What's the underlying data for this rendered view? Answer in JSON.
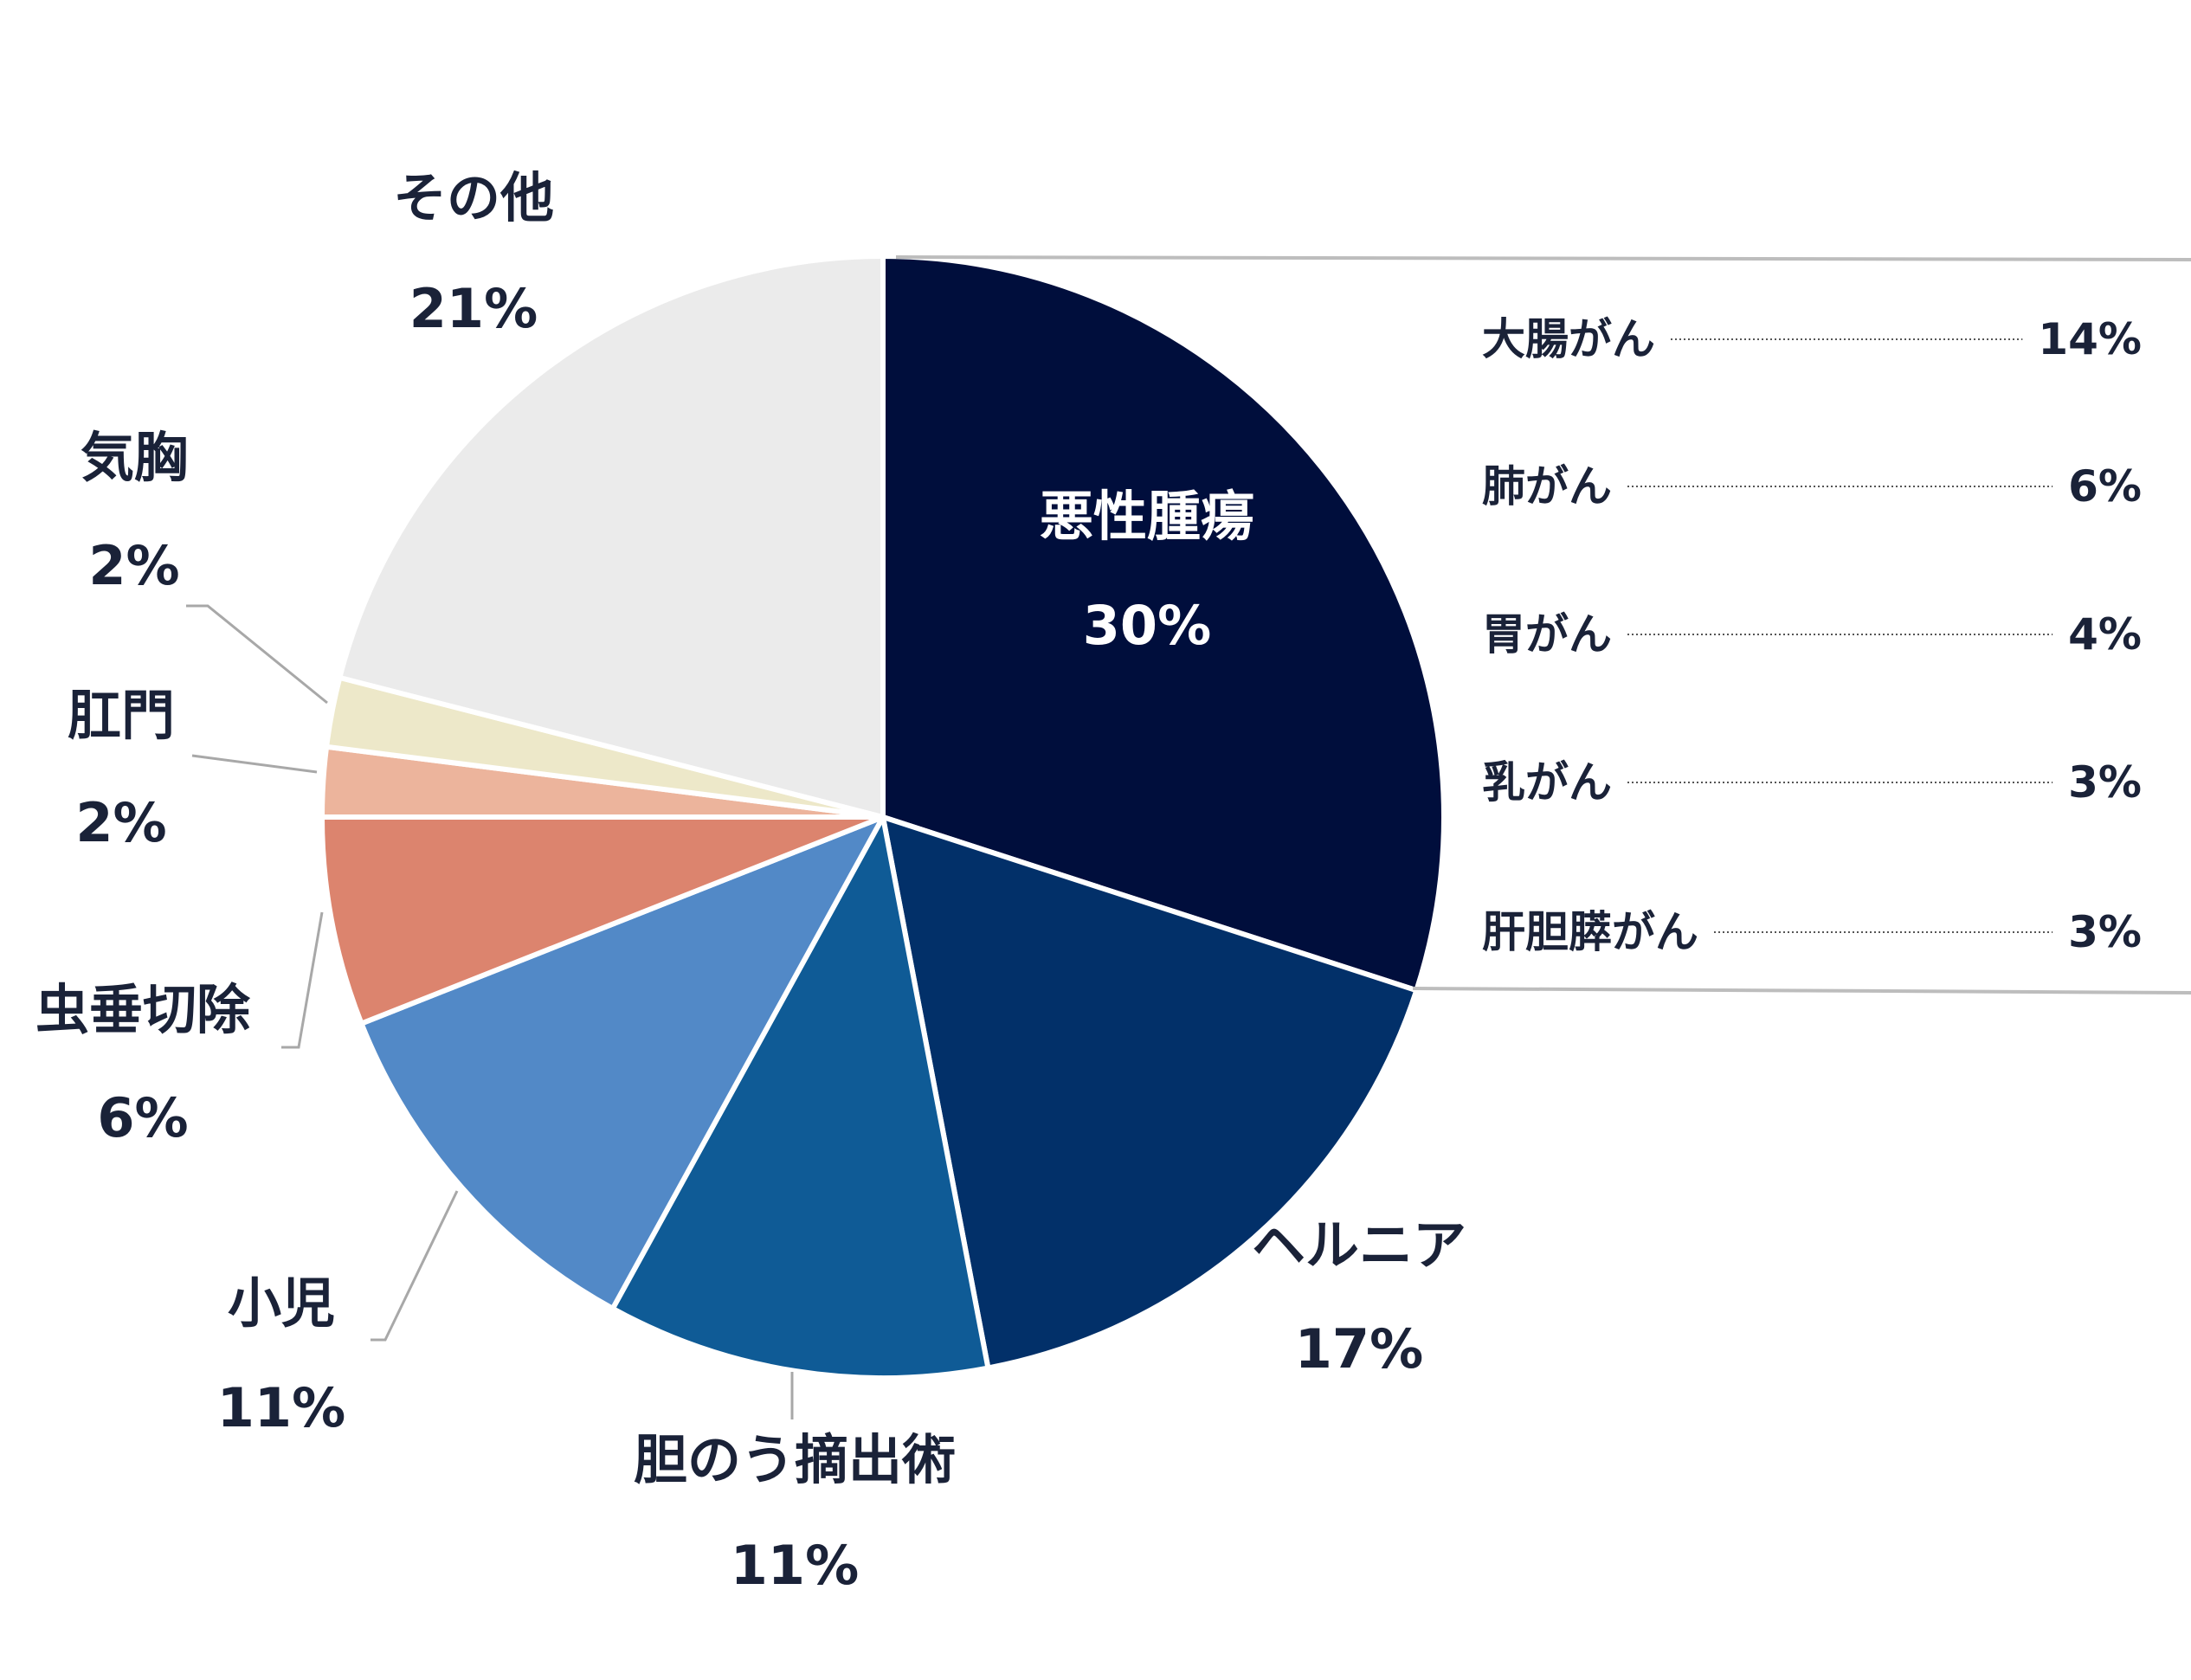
{
  "chart_data": {
    "type": "pie",
    "start_angle_deg": 0,
    "direction": "clockwise",
    "slices": [
      {
        "label": "悪性腫瘍",
        "value": 30,
        "value_label": "30%",
        "color": "#000e3c"
      },
      {
        "label": "ヘルニア",
        "value": 17,
        "value_label": "17%",
        "color": "#023069"
      },
      {
        "label": "胆のう摘出術",
        "value": 11,
        "value_label": "11%",
        "color": "#0f5b96"
      },
      {
        "label": "小児",
        "value": 11,
        "value_label": "11%",
        "color": "#5289c7"
      },
      {
        "label": "虫垂切除",
        "value": 6,
        "value_label": "6%",
        "color": "#dc846e"
      },
      {
        "label": "肛門",
        "value": 2,
        "value_label": "2%",
        "color": "#ecb49c"
      },
      {
        "label": "気胸",
        "value": 2,
        "value_label": "2%",
        "color": "#ede8c9"
      },
      {
        "label": "その他",
        "value": 21,
        "value_label": "21%",
        "color": "#ebebeb"
      }
    ],
    "breakdown": {
      "parent": "悪性腫瘍",
      "items": [
        {
          "label": "大腸がん",
          "value": 14,
          "value_label": "14%"
        },
        {
          "label": "肺がん",
          "value": 6,
          "value_label": "6%"
        },
        {
          "label": "胃がん",
          "value": 4,
          "value_label": "4%"
        },
        {
          "label": "乳がん",
          "value": 3,
          "value_label": "3%"
        },
        {
          "label": "肝胆膵がん",
          "value": 3,
          "value_label": "3%"
        }
      ]
    }
  }
}
